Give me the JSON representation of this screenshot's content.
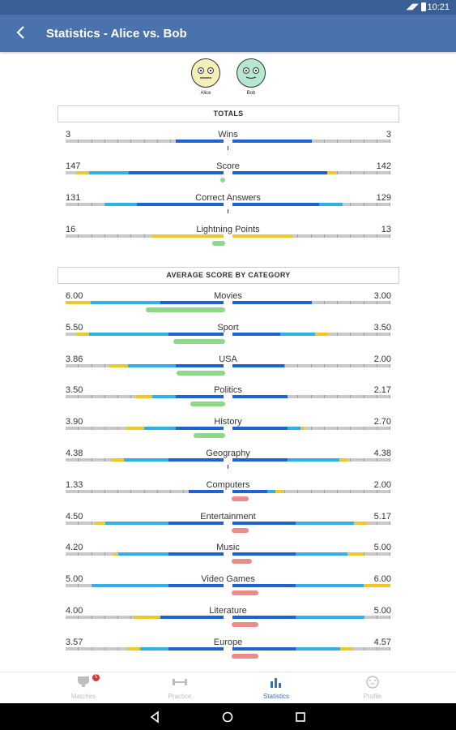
{
  "status": {
    "time": "10:21"
  },
  "appbar": {
    "title": "Statistics - Alice vs. Bob"
  },
  "players": [
    {
      "name": "Alice",
      "color": "#f3efb6"
    },
    {
      "name": "Bob",
      "color": "#b6e8cf"
    }
  ],
  "sections": {
    "totals": "TOTALS",
    "average": "AVERAGE SCORE BY CATEGORY"
  },
  "colors": {
    "blue": "#1e63d6",
    "lightblue": "#2fb0e8",
    "yellow": "#f1c629",
    "grey": "#c9c9c9",
    "green": "#8ed88a",
    "red": "#ee8a8a"
  },
  "totals": [
    {
      "label": "Wins",
      "left": "3",
      "right": "3",
      "l_blue": 0.3,
      "l_light": 0.0,
      "l_yellow": 0.0,
      "r_blue": 0.5,
      "r_light": 0.0,
      "r_yellow": 0.0,
      "diff": 0,
      "diff_side": "none"
    },
    {
      "label": "Score",
      "left": "147",
      "right": "142",
      "l_blue": 0.6,
      "l_light": 0.25,
      "l_yellow": 0.08,
      "r_blue": 0.6,
      "r_light": 0.0,
      "r_yellow": 0.06,
      "diff": 0.03,
      "diff_side": "green"
    },
    {
      "label": "Correct Answers",
      "left": "131",
      "right": "129",
      "l_blue": 0.55,
      "l_light": 0.2,
      "l_yellow": 0.0,
      "r_blue": 0.55,
      "r_light": 0.15,
      "r_yellow": 0.0,
      "diff": 0,
      "diff_side": "none"
    },
    {
      "label": "Lightning Points",
      "left": "16",
      "right": "13",
      "l_blue": 0.0,
      "l_light": 0.0,
      "l_yellow": 0.45,
      "r_blue": 0.0,
      "r_light": 0.0,
      "r_yellow": 0.38,
      "diff": 0.08,
      "diff_side": "green"
    }
  ],
  "categories": [
    {
      "label": "Movies",
      "left": "6.00",
      "right": "3.00",
      "l_blue": 0.4,
      "l_light": 0.44,
      "l_yellow": 0.16,
      "r_blue": 0.5,
      "r_light": 0.0,
      "r_yellow": 0.0,
      "diff": 0.5,
      "diff_side": "green"
    },
    {
      "label": "Sport",
      "left": "5.50",
      "right": "3.50",
      "l_blue": 0.35,
      "l_light": 0.5,
      "l_yellow": 0.08,
      "r_blue": 0.3,
      "r_light": 0.22,
      "r_yellow": 0.08,
      "diff": 0.33,
      "diff_side": "green"
    },
    {
      "label": "USA",
      "left": "3.86",
      "right": "2.00",
      "l_blue": 0.3,
      "l_light": 0.3,
      "l_yellow": 0.12,
      "r_blue": 0.33,
      "r_light": 0.0,
      "r_yellow": 0.0,
      "diff": 0.31,
      "diff_side": "green"
    },
    {
      "label": "Politics",
      "left": "3.50",
      "right": "2.17",
      "l_blue": 0.3,
      "l_light": 0.15,
      "l_yellow": 0.1,
      "r_blue": 0.35,
      "r_light": 0.0,
      "r_yellow": 0.0,
      "diff": 0.22,
      "diff_side": "green"
    },
    {
      "label": "History",
      "left": "3.90",
      "right": "2.70",
      "l_blue": 0.3,
      "l_light": 0.2,
      "l_yellow": 0.12,
      "r_blue": 0.35,
      "r_light": 0.08,
      "r_yellow": 0.02,
      "diff": 0.2,
      "diff_side": "green"
    },
    {
      "label": "Geography",
      "left": "4.38",
      "right": "4.38",
      "l_blue": 0.35,
      "l_light": 0.28,
      "l_yellow": 0.08,
      "r_blue": 0.35,
      "r_light": 0.33,
      "r_yellow": 0.05,
      "diff": 0,
      "diff_side": "none"
    },
    {
      "label": "Computers",
      "left": "1.33",
      "right": "2.00",
      "l_blue": 0.22,
      "l_light": 0.0,
      "l_yellow": 0.0,
      "r_blue": 0.22,
      "r_light": 0.05,
      "r_yellow": 0.05,
      "diff": 0.11,
      "diff_side": "red"
    },
    {
      "label": "Entertainment",
      "left": "4.50",
      "right": "5.17",
      "l_blue": 0.35,
      "l_light": 0.4,
      "l_yellow": 0.06,
      "r_blue": 0.4,
      "r_light": 0.37,
      "r_yellow": 0.08,
      "diff": 0.11,
      "diff_side": "red"
    },
    {
      "label": "Music",
      "left": "4.20",
      "right": "5.00",
      "l_blue": 0.35,
      "l_light": 0.32,
      "l_yellow": 0.03,
      "r_blue": 0.4,
      "r_light": 0.33,
      "r_yellow": 0.1,
      "diff": 0.13,
      "diff_side": "red"
    },
    {
      "label": "Video Games",
      "left": "5.00",
      "right": "6.00",
      "l_blue": 0.35,
      "l_light": 0.48,
      "l_yellow": 0.0,
      "r_blue": 0.4,
      "r_light": 0.43,
      "r_yellow": 0.17,
      "diff": 0.17,
      "diff_side": "red"
    },
    {
      "label": "Literature",
      "left": "4.00",
      "right": "5.00",
      "l_blue": 0.4,
      "l_light": 0.0,
      "l_yellow": 0.17,
      "r_blue": 0.4,
      "r_light": 0.43,
      "r_yellow": 0.0,
      "diff": 0.17,
      "diff_side": "red"
    },
    {
      "label": "Europe",
      "left": "3.57",
      "right": "4.57",
      "l_blue": 0.35,
      "l_light": 0.18,
      "l_yellow": 0.08,
      "r_blue": 0.4,
      "r_light": 0.28,
      "r_yellow": 0.08,
      "diff": 0.17,
      "diff_side": "red"
    }
  ],
  "bottomnav": [
    {
      "label": "Matches",
      "icon": "trophy-icon",
      "badge": "5"
    },
    {
      "label": "Practice",
      "icon": "dumbbell-icon"
    },
    {
      "label": "Statistics",
      "icon": "bar-chart-icon"
    },
    {
      "label": "Profile",
      "icon": "smiley-icon"
    }
  ]
}
